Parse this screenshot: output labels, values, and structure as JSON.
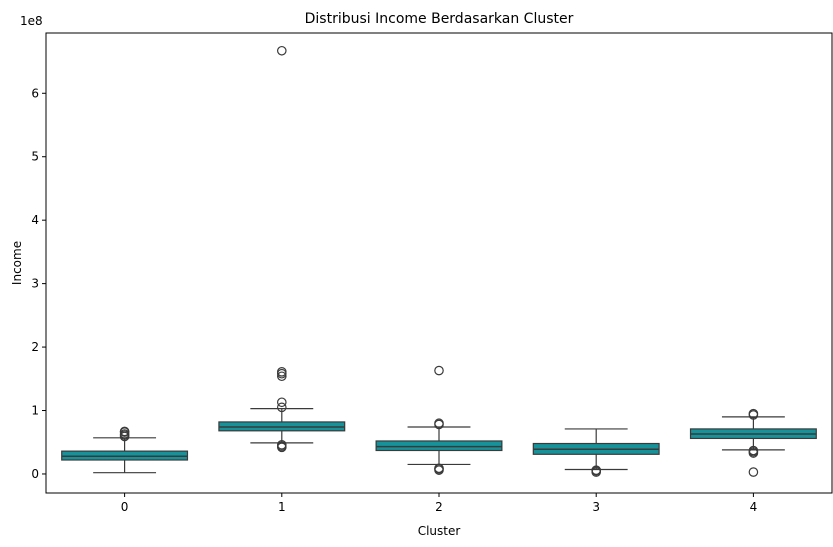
{
  "chart_data": {
    "type": "box",
    "title": "Distribusi Income Berdasarkan Cluster",
    "xlabel": "Cluster",
    "ylabel": "Income",
    "y_multiplier_label": "1e8",
    "y_scale": 100000000,
    "categories": [
      "0",
      "1",
      "2",
      "3",
      "4"
    ],
    "ylim": [
      -0.3,
      6.95
    ],
    "yticks": [
      0,
      1,
      2,
      3,
      4,
      5,
      6
    ],
    "box_color": "#16939a",
    "line_color": "#3a3a3a",
    "grid": false,
    "boxes": [
      {
        "category": "0",
        "whisker_low": 0.02,
        "q1": 0.22,
        "median": 0.28,
        "q3": 0.36,
        "whisker_high": 0.57,
        "outliers": [
          0.59,
          0.61,
          0.63,
          0.66,
          0.67
        ]
      },
      {
        "category": "1",
        "whisker_low": 0.49,
        "q1": 0.68,
        "median": 0.74,
        "q3": 0.82,
        "whisker_high": 1.03,
        "outliers": [
          0.42,
          0.44,
          0.46,
          1.05,
          1.13,
          1.54,
          1.58,
          1.61,
          6.67
        ]
      },
      {
        "category": "2",
        "whisker_low": 0.15,
        "q1": 0.37,
        "median": 0.43,
        "q3": 0.52,
        "whisker_high": 0.74,
        "outliers": [
          0.06,
          0.08,
          0.09,
          0.78,
          0.8,
          1.63
        ]
      },
      {
        "category": "3",
        "whisker_low": 0.07,
        "q1": 0.31,
        "median": 0.39,
        "q3": 0.48,
        "whisker_high": 0.71,
        "outliers": [
          0.03,
          0.05,
          0.06
        ]
      },
      {
        "category": "4",
        "whisker_low": 0.38,
        "q1": 0.56,
        "median": 0.63,
        "q3": 0.71,
        "whisker_high": 0.9,
        "outliers": [
          0.03,
          0.33,
          0.35,
          0.37,
          0.93,
          0.95
        ]
      }
    ]
  }
}
